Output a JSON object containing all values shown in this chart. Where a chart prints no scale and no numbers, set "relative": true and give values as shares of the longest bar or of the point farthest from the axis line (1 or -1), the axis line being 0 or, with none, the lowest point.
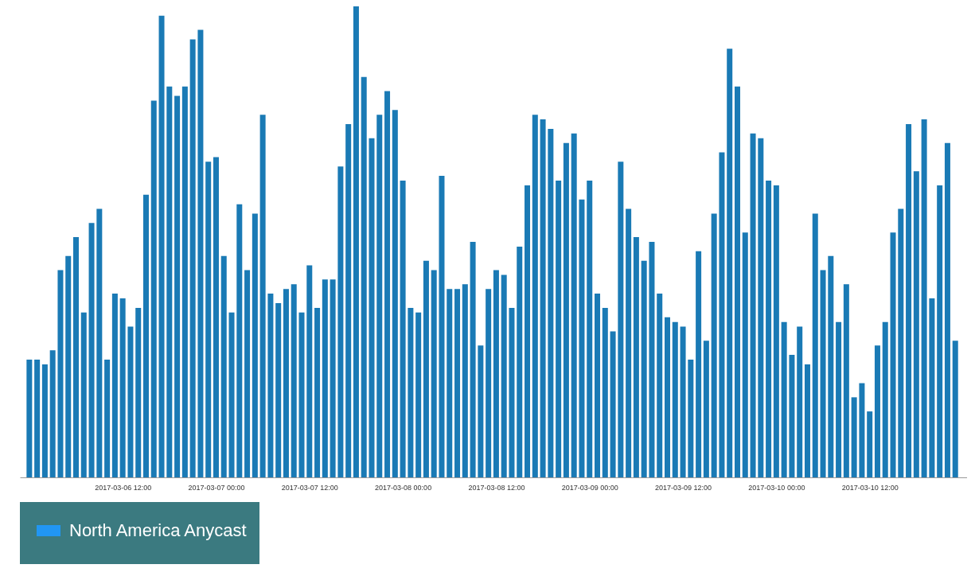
{
  "chart_data": {
    "type": "bar",
    "relative": true,
    "legend": "bottom",
    "grid": false,
    "x": [
      "2017-03-06T00:00",
      "2017-03-06T01:00",
      "2017-03-06T02:00",
      "2017-03-06T03:00",
      "2017-03-06T04:00",
      "2017-03-06T05:00",
      "2017-03-06T06:00",
      "2017-03-06T07:00",
      "2017-03-06T08:00",
      "2017-03-06T09:00",
      "2017-03-06T10:00",
      "2017-03-06T11:00",
      "2017-03-06T12:00",
      "2017-03-06T13:00",
      "2017-03-06T14:00",
      "2017-03-06T15:00",
      "2017-03-06T16:00",
      "2017-03-06T17:00",
      "2017-03-06T18:00",
      "2017-03-06T19:00",
      "2017-03-06T20:00",
      "2017-03-06T21:00",
      "2017-03-06T22:00",
      "2017-03-06T23:00",
      "2017-03-07T00:00",
      "2017-03-07T01:00",
      "2017-03-07T02:00",
      "2017-03-07T03:00",
      "2017-03-07T04:00",
      "2017-03-07T05:00",
      "2017-03-07T06:00",
      "2017-03-07T07:00",
      "2017-03-07T08:00",
      "2017-03-07T09:00",
      "2017-03-07T10:00",
      "2017-03-07T11:00",
      "2017-03-07T12:00",
      "2017-03-07T13:00",
      "2017-03-07T14:00",
      "2017-03-07T15:00",
      "2017-03-07T16:00",
      "2017-03-07T17:00",
      "2017-03-07T18:00",
      "2017-03-07T19:00",
      "2017-03-07T20:00",
      "2017-03-07T21:00",
      "2017-03-07T22:00",
      "2017-03-07T23:00",
      "2017-03-08T00:00",
      "2017-03-08T01:00",
      "2017-03-08T02:00",
      "2017-03-08T03:00",
      "2017-03-08T04:00",
      "2017-03-08T05:00",
      "2017-03-08T06:00",
      "2017-03-08T07:00",
      "2017-03-08T08:00",
      "2017-03-08T09:00",
      "2017-03-08T10:00",
      "2017-03-08T11:00",
      "2017-03-08T12:00",
      "2017-03-08T13:00",
      "2017-03-08T14:00",
      "2017-03-08T15:00",
      "2017-03-08T16:00",
      "2017-03-08T17:00",
      "2017-03-08T18:00",
      "2017-03-08T19:00",
      "2017-03-08T20:00",
      "2017-03-08T21:00",
      "2017-03-08T22:00",
      "2017-03-08T23:00",
      "2017-03-09T00:00",
      "2017-03-09T01:00",
      "2017-03-09T02:00",
      "2017-03-09T03:00",
      "2017-03-09T04:00",
      "2017-03-09T05:00",
      "2017-03-09T06:00",
      "2017-03-09T07:00",
      "2017-03-09T08:00",
      "2017-03-09T09:00",
      "2017-03-09T10:00",
      "2017-03-09T11:00",
      "2017-03-09T12:00",
      "2017-03-09T13:00",
      "2017-03-09T14:00",
      "2017-03-09T15:00",
      "2017-03-09T16:00",
      "2017-03-09T17:00",
      "2017-03-09T18:00",
      "2017-03-09T19:00",
      "2017-03-09T20:00",
      "2017-03-09T21:00",
      "2017-03-09T22:00",
      "2017-03-09T23:00",
      "2017-03-10T00:00",
      "2017-03-10T01:00",
      "2017-03-10T02:00",
      "2017-03-10T03:00",
      "2017-03-10T04:00",
      "2017-03-10T05:00",
      "2017-03-10T06:00",
      "2017-03-10T07:00",
      "2017-03-10T08:00",
      "2017-03-10T09:00",
      "2017-03-10T10:00",
      "2017-03-10T11:00",
      "2017-03-10T12:00",
      "2017-03-10T13:00",
      "2017-03-10T14:00",
      "2017-03-10T15:00",
      "2017-03-10T16:00",
      "2017-03-10T17:00",
      "2017-03-10T18:00",
      "2017-03-10T19:00",
      "2017-03-10T20:00",
      "2017-03-10T21:00",
      "2017-03-10T22:00",
      "2017-03-10T23:00"
    ],
    "xlim": [
      "2017-03-05T23:18",
      "2017-03-11T00:00"
    ],
    "xticks": [
      {
        "value": "2017-03-06T12:00",
        "label": "2017-03-06 12:00"
      },
      {
        "value": "2017-03-07T00:00",
        "label": "2017-03-07 00:00"
      },
      {
        "value": "2017-03-07T12:00",
        "label": "2017-03-07 12:00"
      },
      {
        "value": "2017-03-08T00:00",
        "label": "2017-03-08 00:00"
      },
      {
        "value": "2017-03-08T12:00",
        "label": "2017-03-08 12:00"
      },
      {
        "value": "2017-03-09T00:00",
        "label": "2017-03-09 00:00"
      },
      {
        "value": "2017-03-09T12:00",
        "label": "2017-03-09 12:00"
      },
      {
        "value": "2017-03-10T00:00",
        "label": "2017-03-10 00:00"
      },
      {
        "value": "2017-03-10T12:00",
        "label": "2017-03-10 12:00"
      }
    ],
    "series": [
      {
        "name": "North America Anycast",
        "color": "#1a7ab5",
        "values": [
          0.25,
          0.25,
          0.24,
          0.27,
          0.44,
          0.47,
          0.51,
          0.35,
          0.54,
          0.57,
          0.25,
          0.39,
          0.38,
          0.32,
          0.36,
          0.6,
          0.8,
          0.98,
          0.83,
          0.81,
          0.83,
          0.93,
          0.95,
          0.67,
          0.68,
          0.47,
          0.35,
          0.58,
          0.44,
          0.56,
          0.77,
          0.39,
          0.37,
          0.4,
          0.41,
          0.35,
          0.45,
          0.36,
          0.42,
          0.42,
          0.66,
          0.75,
          1,
          0.85,
          0.72,
          0.77,
          0.82,
          0.78,
          0.63,
          0.36,
          0.35,
          0.46,
          0.44,
          0.64,
          0.4,
          0.4,
          0.41,
          0.5,
          0.28,
          0.4,
          0.44,
          0.43,
          0.36,
          0.49,
          0.62,
          0.77,
          0.76,
          0.74,
          0.63,
          0.71,
          0.73,
          0.59,
          0.63,
          0.39,
          0.36,
          0.31,
          0.67,
          0.57,
          0.51,
          0.46,
          0.5,
          0.39,
          0.34,
          0.33,
          0.32,
          0.25,
          0.48,
          0.29,
          0.56,
          0.69,
          0.91,
          0.83,
          0.52,
          0.73,
          0.72,
          0.63,
          0.62,
          0.33,
          0.26,
          0.32,
          0.24,
          0.56,
          0.44,
          0.47,
          0.33,
          0.41,
          0.17,
          0.2,
          0.14,
          0.28,
          0.33,
          0.52,
          0.57,
          0.75,
          0.65,
          0.76,
          0.38,
          0.62,
          0.71,
          0.29
        ]
      }
    ]
  }
}
